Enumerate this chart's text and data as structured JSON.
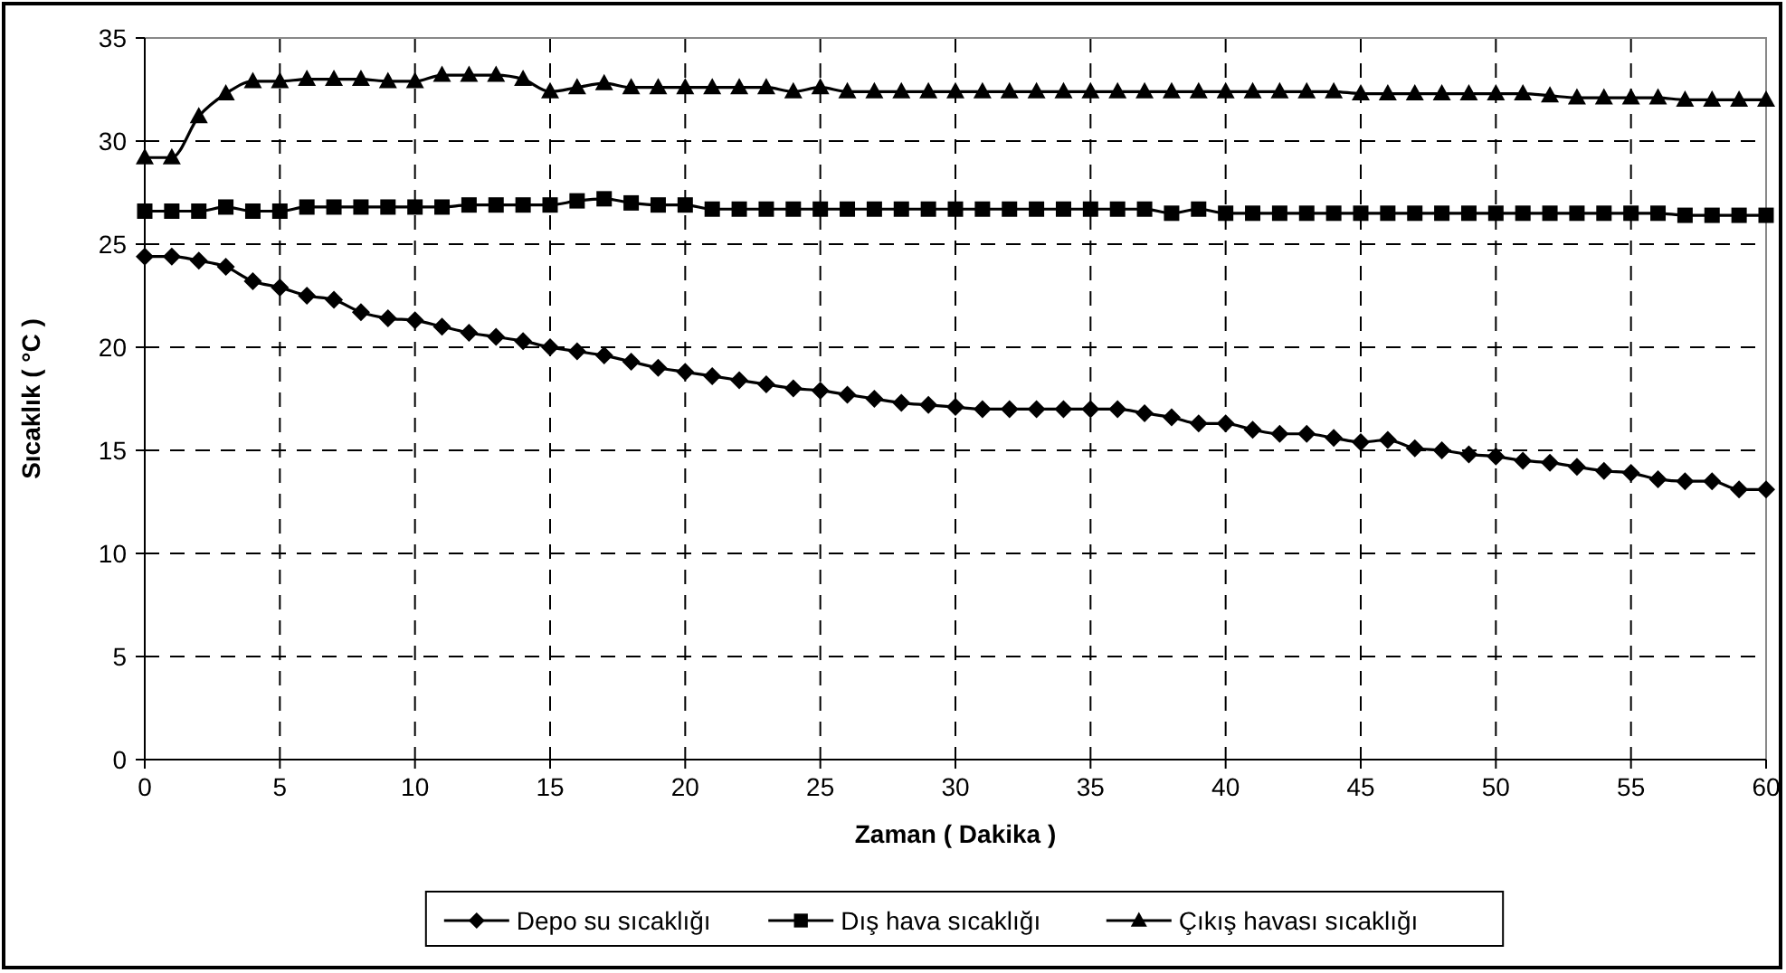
{
  "chart_data": {
    "type": "line",
    "xlabel": "Zaman ( Dakika )",
    "ylabel": "Sıcaklık ( °C )",
    "x": [
      0,
      1,
      2,
      3,
      4,
      5,
      6,
      7,
      8,
      9,
      10,
      11,
      12,
      13,
      14,
      15,
      16,
      17,
      18,
      19,
      20,
      21,
      22,
      23,
      24,
      25,
      26,
      27,
      28,
      29,
      30,
      31,
      32,
      33,
      34,
      35,
      36,
      37,
      38,
      39,
      40,
      41,
      42,
      43,
      44,
      45,
      46,
      47,
      48,
      49,
      50,
      51,
      52,
      53,
      54,
      55,
      56,
      57,
      58,
      59,
      60
    ],
    "xlim": [
      0,
      60
    ],
    "xticks": [
      0,
      5,
      10,
      15,
      20,
      25,
      30,
      35,
      40,
      45,
      50,
      55,
      60
    ],
    "ylim": [
      0,
      35
    ],
    "yticks": [
      0,
      5,
      10,
      15,
      20,
      25,
      30,
      35
    ],
    "grid": true,
    "line_style": "solid",
    "legend": "bottom",
    "series": [
      {
        "name": "Depo su sıcaklığı",
        "color": "#000000",
        "marker": "diamond",
        "values": [
          24.4,
          24.4,
          24.2,
          23.9,
          23.2,
          22.9,
          22.5,
          22.3,
          21.7,
          21.4,
          21.3,
          21.0,
          20.7,
          20.5,
          20.3,
          20.0,
          19.8,
          19.6,
          19.3,
          19.0,
          18.8,
          18.6,
          18.4,
          18.2,
          18.0,
          17.9,
          17.7,
          17.5,
          17.3,
          17.2,
          17.1,
          17.0,
          17.0,
          17.0,
          17.0,
          17.0,
          17.0,
          16.8,
          16.6,
          16.3,
          16.3,
          16.0,
          15.8,
          15.8,
          15.6,
          15.4,
          15.5,
          15.1,
          15.0,
          14.8,
          14.7,
          14.5,
          14.4,
          14.2,
          14.0,
          13.9,
          13.6,
          13.5,
          13.5,
          13.1,
          13.1
        ]
      },
      {
        "name": "Dış hava sıcaklığı",
        "color": "#000000",
        "marker": "square",
        "values": [
          26.6,
          26.6,
          26.6,
          26.8,
          26.6,
          26.6,
          26.8,
          26.8,
          26.8,
          26.8,
          26.8,
          26.8,
          26.9,
          26.9,
          26.9,
          26.9,
          27.1,
          27.2,
          27.0,
          26.9,
          26.9,
          26.7,
          26.7,
          26.7,
          26.7,
          26.7,
          26.7,
          26.7,
          26.7,
          26.7,
          26.7,
          26.7,
          26.7,
          26.7,
          26.7,
          26.7,
          26.7,
          26.7,
          26.5,
          26.7,
          26.5,
          26.5,
          26.5,
          26.5,
          26.5,
          26.5,
          26.5,
          26.5,
          26.5,
          26.5,
          26.5,
          26.5,
          26.5,
          26.5,
          26.5,
          26.5,
          26.5,
          26.4,
          26.4,
          26.4,
          26.4
        ]
      },
      {
        "name": "Çıkış havası sıcaklığı",
        "color": "#000000",
        "marker": "triangle",
        "values": [
          29.2,
          29.2,
          31.2,
          32.3,
          32.9,
          32.9,
          33.0,
          33.0,
          33.0,
          32.9,
          32.9,
          33.2,
          33.2,
          33.2,
          33.0,
          32.4,
          32.6,
          32.8,
          32.6,
          32.6,
          32.6,
          32.6,
          32.6,
          32.6,
          32.4,
          32.6,
          32.4,
          32.4,
          32.4,
          32.4,
          32.4,
          32.4,
          32.4,
          32.4,
          32.4,
          32.4,
          32.4,
          32.4,
          32.4,
          32.4,
          32.4,
          32.4,
          32.4,
          32.4,
          32.4,
          32.3,
          32.3,
          32.3,
          32.3,
          32.3,
          32.3,
          32.3,
          32.2,
          32.1,
          32.1,
          32.1,
          32.1,
          32.0,
          32.0,
          32.0,
          32.0
        ]
      }
    ]
  }
}
